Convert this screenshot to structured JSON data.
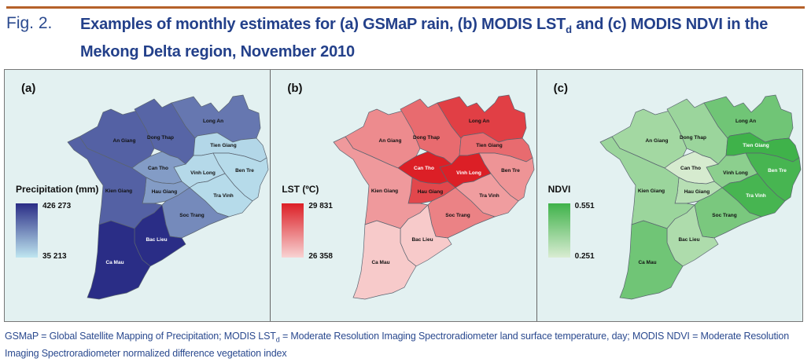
{
  "figure": {
    "number": "Fig. 2.",
    "title_part1": "Examples of monthly estimates for (a) GSMaP rain, (b) MODIS LST",
    "title_sub": "d",
    "title_part2": " and (c) MODIS NDVI in the Mekong Delta region, November 2010",
    "caption_part1": "GSMaP = Global Satellite Mapping of Precipitation; MODIS LST",
    "caption_sub": "d",
    "caption_part2": "  = Moderate Resolution Imaging Spectroradiometer land surface temperature, day; MODIS NDVI = Moderate Resolution Imaging Spectroradiometer normalized difference vegetation index",
    "rule_color": "#b5612a",
    "title_color": "#23408a"
  },
  "chart_data": [
    {
      "type": "heatmap",
      "panel": "(a)",
      "title": "GSMaP rain",
      "legend_title": "Precipitation (mm)",
      "legend_max": "426 273",
      "legend_min": "35 213",
      "range": [
        35213,
        426273
      ],
      "color_low": "#bfe6f0",
      "color_high": "#2a2d86",
      "regions": [
        {
          "name": "An Giang",
          "level": 0.72
        },
        {
          "name": "Dong Thap",
          "level": 0.7
        },
        {
          "name": "Long An",
          "level": 0.6
        },
        {
          "name": "Tien Giang",
          "level": 0.08
        },
        {
          "name": "Ben Tre",
          "level": 0.06
        },
        {
          "name": "Vinh Long",
          "level": 0.07
        },
        {
          "name": "Tra Vinh",
          "level": 0.06
        },
        {
          "name": "Can Tho",
          "level": 0.4
        },
        {
          "name": "Hau Giang",
          "level": 0.4
        },
        {
          "name": "Soc Trang",
          "level": 0.5
        },
        {
          "name": "Kien Giang",
          "level": 0.72
        },
        {
          "name": "Bac Lieu",
          "level": 1.0
        },
        {
          "name": "Ca Mau",
          "level": 1.0
        }
      ]
    },
    {
      "type": "heatmap",
      "panel": "(b)",
      "title": "MODIS LSTd",
      "legend_title": "LST (ºC)",
      "legend_max": "29 831",
      "legend_min": "26 358",
      "range": [
        26358,
        29831
      ],
      "color_low": "#f8d3d3",
      "color_high": "#dc1f26",
      "regions": [
        {
          "name": "An Giang",
          "level": 0.4
        },
        {
          "name": "Dong Thap",
          "level": 0.58
        },
        {
          "name": "Long An",
          "level": 0.82
        },
        {
          "name": "Tien Giang",
          "level": 0.58
        },
        {
          "name": "Ben Tre",
          "level": 0.35
        },
        {
          "name": "Vinh Long",
          "level": 1.0
        },
        {
          "name": "Tra Vinh",
          "level": 0.3
        },
        {
          "name": "Can Tho",
          "level": 1.0
        },
        {
          "name": "Hau Giang",
          "level": 0.78
        },
        {
          "name": "Soc Trang",
          "level": 0.45
        },
        {
          "name": "Kien Giang",
          "level": 0.32
        },
        {
          "name": "Bac Lieu",
          "level": 0.05
        },
        {
          "name": "Ca Mau",
          "level": 0.05
        }
      ]
    },
    {
      "type": "heatmap",
      "panel": "(c)",
      "title": "MODIS NDVI",
      "legend_title": "NDVI",
      "legend_max": "0.551",
      "legend_min": "0.251",
      "range": [
        0.251,
        0.551
      ],
      "color_low": "#d9ecd2",
      "color_high": "#3fb24a",
      "regions": [
        {
          "name": "An Giang",
          "level": 0.35
        },
        {
          "name": "Dong Thap",
          "level": 0.4
        },
        {
          "name": "Long An",
          "level": 0.68
        },
        {
          "name": "Tien Giang",
          "level": 1.0
        },
        {
          "name": "Ben Tre",
          "level": 0.95
        },
        {
          "name": "Vinh Long",
          "level": 0.5
        },
        {
          "name": "Tra Vinh",
          "level": 0.95
        },
        {
          "name": "Can Tho",
          "level": 0.02
        },
        {
          "name": "Hau Giang",
          "level": 0.22
        },
        {
          "name": "Soc Trang",
          "level": 0.62
        },
        {
          "name": "Kien Giang",
          "level": 0.4
        },
        {
          "name": "Bac Lieu",
          "level": 0.28
        },
        {
          "name": "Ca Mau",
          "level": 0.68
        }
      ]
    }
  ]
}
